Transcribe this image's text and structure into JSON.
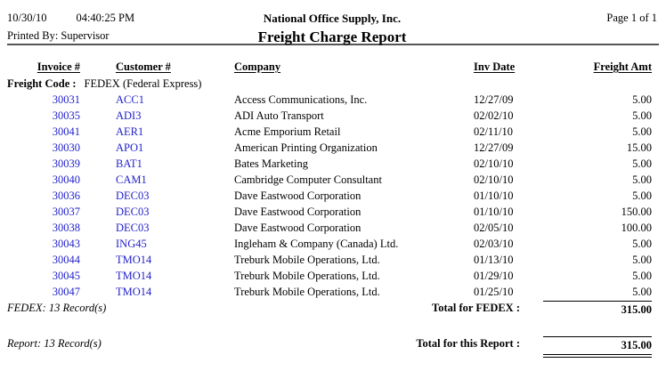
{
  "page": {
    "date": "10/30/10",
    "time": "04:40:25 PM",
    "printed_by": "Printed By: Supervisor",
    "company_name": "National Office Supply, Inc.",
    "report_title": "Freight Charge Report",
    "page_indicator": "Page 1 of 1"
  },
  "table": {
    "columns": [
      "Invoice #",
      "Customer #",
      "Company",
      "Inv Date",
      "Freight Amt"
    ],
    "freight_code_label": "Freight Code :",
    "freight_code_value": "FEDEX (Federal Express)",
    "rows": [
      {
        "invoice": "30031",
        "customer": "ACC1",
        "company": "Access Communications, Inc.",
        "inv_date": "12/27/09",
        "freight_amt": "5.00"
      },
      {
        "invoice": "30035",
        "customer": "ADI3",
        "company": "ADI Auto Transport",
        "inv_date": "02/02/10",
        "freight_amt": "5.00"
      },
      {
        "invoice": "30041",
        "customer": "AER1",
        "company": "Acme Emporium Retail",
        "inv_date": "02/11/10",
        "freight_amt": "5.00"
      },
      {
        "invoice": "30030",
        "customer": "APO1",
        "company": "American Printing Organization",
        "inv_date": "12/27/09",
        "freight_amt": "15.00"
      },
      {
        "invoice": "30039",
        "customer": "BAT1",
        "company": "Bates Marketing",
        "inv_date": "02/10/10",
        "freight_amt": "5.00"
      },
      {
        "invoice": "30040",
        "customer": "CAM1",
        "company": "Cambridge Computer Consultant",
        "inv_date": "02/10/10",
        "freight_amt": "5.00"
      },
      {
        "invoice": "30036",
        "customer": "DEC03",
        "company": "Dave Eastwood Corporation",
        "inv_date": "01/10/10",
        "freight_amt": "5.00"
      },
      {
        "invoice": "30037",
        "customer": "DEC03",
        "company": "Dave Eastwood Corporation",
        "inv_date": "01/10/10",
        "freight_amt": "150.00"
      },
      {
        "invoice": "30038",
        "customer": "DEC03",
        "company": "Dave Eastwood Corporation",
        "inv_date": "02/05/10",
        "freight_amt": "100.00"
      },
      {
        "invoice": "30043",
        "customer": "ING45",
        "company": "Ingleham & Company (Canada) Ltd.",
        "inv_date": "02/03/10",
        "freight_amt": "5.00"
      },
      {
        "invoice": "30044",
        "customer": "TMO14",
        "company": "Treburk Mobile Operations, Ltd.",
        "inv_date": "01/13/10",
        "freight_amt": "5.00"
      },
      {
        "invoice": "30045",
        "customer": "TMO14",
        "company": "Treburk Mobile Operations, Ltd.",
        "inv_date": "01/29/10",
        "freight_amt": "5.00"
      },
      {
        "invoice": "30047",
        "customer": "TMO14",
        "company": "Treburk Mobile Operations, Ltd.",
        "inv_date": "01/25/10",
        "freight_amt": "5.00"
      }
    ],
    "group_summary": {
      "record_count": "FEDEX: 13 Record(s)",
      "total_label": "Total for FEDEX :",
      "total_amount": "315.00"
    },
    "report_summary": {
      "record_count": "Report: 13 Record(s)",
      "total_label": "Total for this Report :",
      "total_amount": "315.00"
    }
  },
  "colors": {
    "link_blue": "#2222CC",
    "rule_gray": "#555555"
  }
}
